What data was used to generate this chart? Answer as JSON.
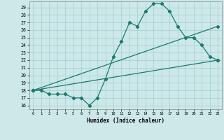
{
  "xlabel": "Humidex (Indice chaleur)",
  "background_color": "#cce8e8",
  "grid_color": "#b0d8d8",
  "line_color": "#1a7a6e",
  "xlim": [
    -0.5,
    23.5
  ],
  "ylim": [
    15.5,
    29.8
  ],
  "yticks": [
    16,
    17,
    18,
    19,
    20,
    21,
    22,
    23,
    24,
    25,
    26,
    27,
    28,
    29
  ],
  "xticks": [
    0,
    1,
    2,
    3,
    4,
    5,
    6,
    7,
    8,
    9,
    10,
    11,
    12,
    13,
    14,
    15,
    16,
    17,
    18,
    19,
    20,
    21,
    22,
    23
  ],
  "line1_x": [
    0,
    1,
    2,
    3,
    4,
    5,
    6,
    7,
    8,
    9,
    10,
    11,
    12,
    13,
    14,
    15,
    16,
    17,
    18,
    19,
    20,
    21,
    22,
    23
  ],
  "line1_y": [
    18.0,
    18.0,
    17.5,
    17.5,
    17.5,
    17.0,
    17.0,
    16.0,
    17.0,
    19.5,
    22.5,
    24.5,
    27.0,
    26.5,
    28.5,
    29.5,
    29.5,
    28.5,
    26.5,
    25.0,
    25.0,
    24.0,
    22.5,
    22.0
  ],
  "line2_x": [
    0,
    23
  ],
  "line2_y": [
    18.0,
    26.5
  ],
  "line3_x": [
    0,
    23
  ],
  "line3_y": [
    18.0,
    22.0
  ]
}
